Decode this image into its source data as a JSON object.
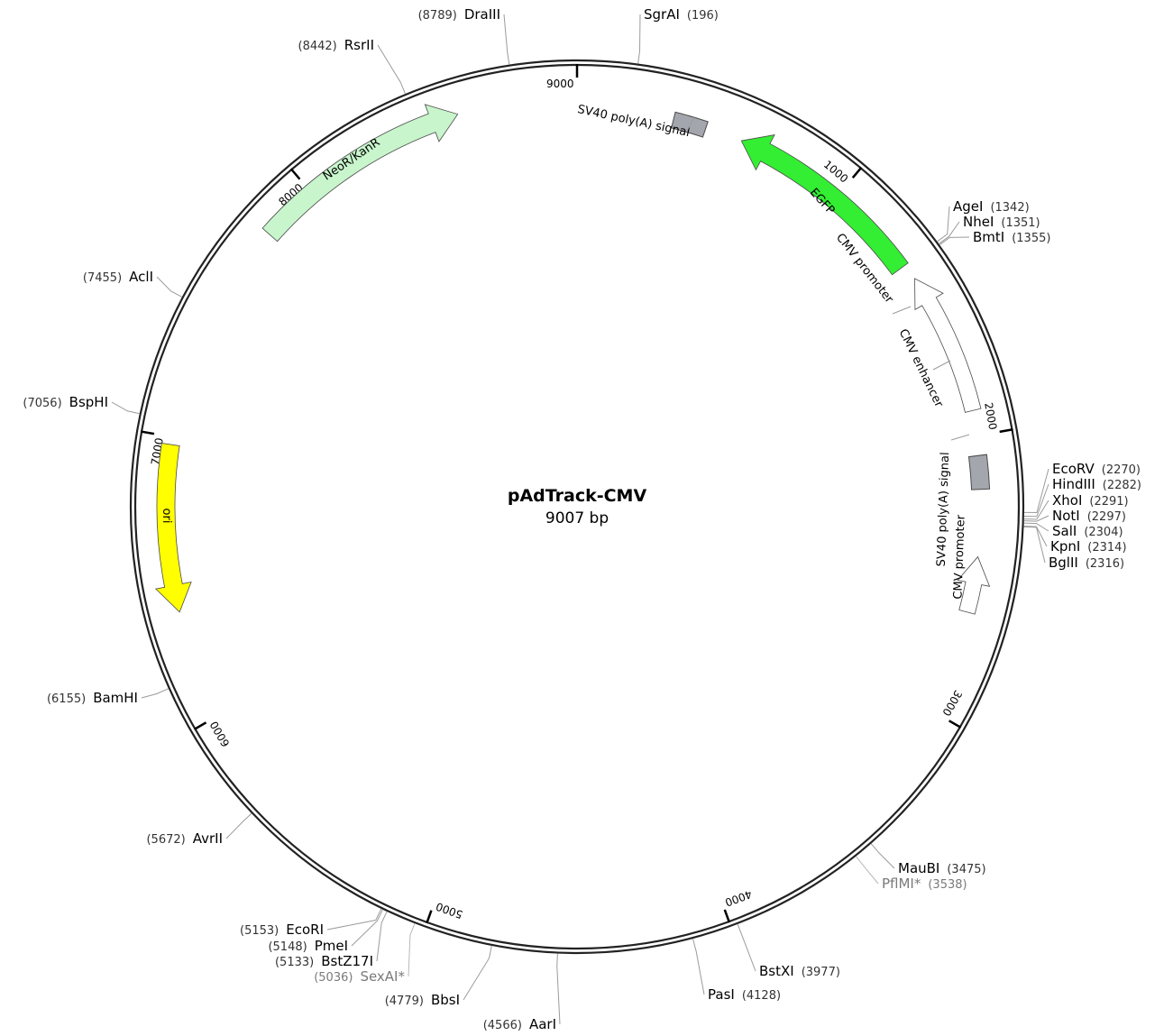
{
  "plasmid": {
    "name": "pAdTrack-CMV",
    "length_label": "9007 bp",
    "length": 9007
  },
  "ticks": [
    {
      "pos": 0,
      "label": "9000"
    },
    {
      "pos": 1000,
      "label": "1000"
    },
    {
      "pos": 2000,
      "label": "2000"
    },
    {
      "pos": 3000,
      "label": "3000"
    },
    {
      "pos": 4000,
      "label": "4000"
    },
    {
      "pos": 5000,
      "label": "5000"
    },
    {
      "pos": 6000,
      "label": "6000"
    },
    {
      "pos": 7000,
      "label": "7000"
    },
    {
      "pos": 8000,
      "label": "8000"
    }
  ],
  "sites": [
    {
      "id": "sgrai",
      "name": "SgrAI",
      "pos_label": "(196)",
      "pos": 196
    },
    {
      "id": "agei",
      "name": "AgeI",
      "pos_label": "(1342)",
      "pos": 1342
    },
    {
      "id": "nhei",
      "name": "NheI",
      "pos_label": "(1351)",
      "pos": 1351
    },
    {
      "id": "bmti",
      "name": "BmtI",
      "pos_label": "(1355)",
      "pos": 1355
    },
    {
      "id": "ecorv",
      "name": "EcoRV",
      "pos_label": "(2270)",
      "pos": 2270
    },
    {
      "id": "hindiii",
      "name": "HindIII",
      "pos_label": "(2282)",
      "pos": 2282
    },
    {
      "id": "xhoi",
      "name": "XhoI",
      "pos_label": "(2291)",
      "pos": 2291
    },
    {
      "id": "noti",
      "name": "NotI",
      "pos_label": "(2297)",
      "pos": 2297
    },
    {
      "id": "sali",
      "name": "SalI",
      "pos_label": "(2304)",
      "pos": 2304
    },
    {
      "id": "kpni",
      "name": "KpnI",
      "pos_label": "(2314)",
      "pos": 2314
    },
    {
      "id": "bglii",
      "name": "BglII",
      "pos_label": "(2316)",
      "pos": 2316
    },
    {
      "id": "maubi",
      "name": "MauBI",
      "pos_label": "(3475)",
      "pos": 3475
    },
    {
      "id": "pflmi",
      "name": "PflMI*",
      "pos_label": "(3538)",
      "pos": 3538,
      "dim": true
    },
    {
      "id": "bstxi",
      "name": "BstXI",
      "pos_label": "(3977)",
      "pos": 3977
    },
    {
      "id": "pasi",
      "name": "PasI",
      "pos_label": "(4128)",
      "pos": 4128
    },
    {
      "id": "aari",
      "name": "AarI",
      "pos_label": "(4566)",
      "pos": 4566
    },
    {
      "id": "bbsi",
      "name": "BbsI",
      "pos_label": "(4779)",
      "pos": 4779
    },
    {
      "id": "sexai",
      "name": "SexAI*",
      "pos_label": "(5036)",
      "pos": 5036,
      "dim": true
    },
    {
      "id": "bstz17i",
      "name": "BstZ17I",
      "pos_label": "(5133)",
      "pos": 5133
    },
    {
      "id": "pmei",
      "name": "PmeI",
      "pos_label": "(5148)",
      "pos": 5148
    },
    {
      "id": "ecori",
      "name": "EcoRI",
      "pos_label": "(5153)",
      "pos": 5153
    },
    {
      "id": "avrii",
      "name": "AvrII",
      "pos_label": "(5672)",
      "pos": 5672
    },
    {
      "id": "bamhi",
      "name": "BamHI",
      "pos_label": "(6155)",
      "pos": 6155
    },
    {
      "id": "bsphi",
      "name": "BspHI",
      "pos_label": "(7056)",
      "pos": 7056
    },
    {
      "id": "acli",
      "name": "AclI",
      "pos_label": "(7455)",
      "pos": 7455
    },
    {
      "id": "rsrii",
      "name": "RsrII",
      "pos_label": "(8442)",
      "pos": 8442
    },
    {
      "id": "draiii",
      "name": "DraIII",
      "pos_label": "(8789)",
      "pos": 8789
    }
  ],
  "features": [
    {
      "id": "neor",
      "name": "NeoR/KanR",
      "start": 7794,
      "end": 8584,
      "direction": "forward",
      "color": "#c8f5cc"
    },
    {
      "id": "ori",
      "name": "ori",
      "start": 6973,
      "end": 6384,
      "direction": "reverse",
      "color": "#ffff00"
    },
    {
      "id": "egfp",
      "name": "EGFP",
      "start": 1342,
      "end": 605,
      "direction": "reverse",
      "color": "#33ee33"
    },
    {
      "id": "cmv-promoter-1",
      "name": "CMV promoter",
      "start": 1910,
      "end": 1400,
      "direction": "reverse",
      "color": "#ffffff"
    },
    {
      "id": "sv40-polya-1",
      "name": "SV40 poly(A) signal",
      "start": 350,
      "end": 470,
      "direction": "none",
      "color": "#a3a6ad"
    },
    {
      "id": "sv40-polya-2",
      "name": "SV40 poly(A) signal",
      "start": 2070,
      "end": 2190,
      "direction": "none",
      "color": "#a3a6ad"
    },
    {
      "id": "cmv-promoter-2",
      "name": "CMV promoter",
      "start": 2630,
      "end": 2430,
      "direction": "reverse",
      "color": "#ffffff"
    }
  ],
  "feature_labels": {
    "cmv_enhancer": "CMV enhancer"
  }
}
